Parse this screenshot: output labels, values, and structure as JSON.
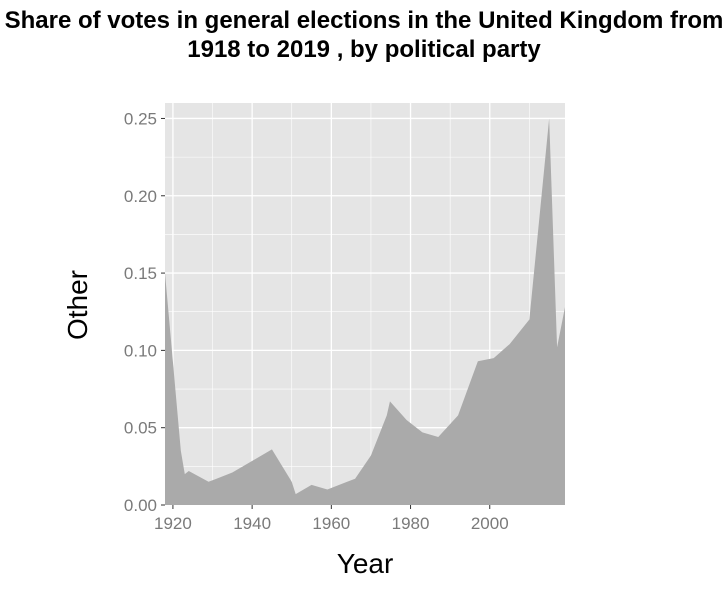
{
  "chart_data": {
    "type": "area",
    "title": "Share of votes in general elections in the United Kingdom from 1918 to 2019 , by political party",
    "xlabel": "Year",
    "ylabel": "Other",
    "xlim": [
      1918,
      2019
    ],
    "ylim": [
      0,
      0.26
    ],
    "x_ticks": [
      1920,
      1940,
      1960,
      1980,
      2000
    ],
    "x_tick_labels": [
      "1920",
      "1940",
      "1960",
      "1980",
      "2000"
    ],
    "y_ticks": [
      0,
      0.05,
      0.1,
      0.15,
      0.2,
      0.25
    ],
    "y_tick_labels": [
      "0.00",
      "0.05",
      "0.10",
      "0.15",
      "0.20",
      "0.25"
    ],
    "grid": true,
    "colors": {
      "panel": "#e5e5e5",
      "grid": "#ffffff",
      "fill": "#aaaaaa",
      "text": "#7a7a7a"
    },
    "series": [
      {
        "x": [
          1918,
          1922,
          1923,
          1924,
          1929,
          1931,
          1935,
          1945,
          1950,
          1951,
          1955,
          1959,
          1964,
          1966,
          1970,
          1974,
          1974.8,
          1979,
          1983,
          1987,
          1992,
          1997,
          2001,
          2005,
          2010,
          2015,
          2017,
          2019
        ],
        "values": [
          0.15,
          0.035,
          0.02,
          0.022,
          0.015,
          0.017,
          0.021,
          0.036,
          0.015,
          0.007,
          0.013,
          0.01,
          0.015,
          0.017,
          0.032,
          0.058,
          0.067,
          0.055,
          0.047,
          0.044,
          0.058,
          0.093,
          0.095,
          0.104,
          0.12,
          0.25,
          0.102,
          0.128
        ]
      }
    ]
  }
}
